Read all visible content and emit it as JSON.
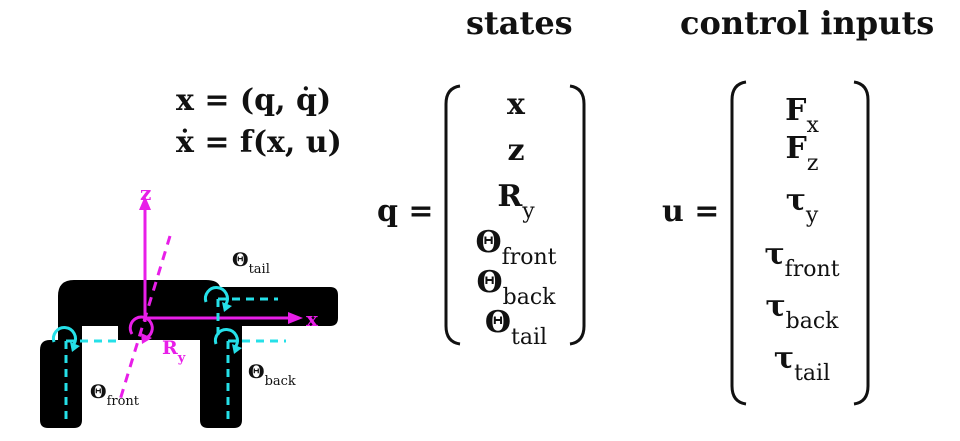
{
  "headers": {
    "states": "states",
    "control_inputs": "control inputs"
  },
  "equations": {
    "line1": "x = (q, q̇)",
    "line2": "ẋ = f(x,  u)"
  },
  "states": {
    "lhs": "q =",
    "rows": [
      {
        "main": "x",
        "sub": ""
      },
      {
        "main": "z",
        "sub": ""
      },
      {
        "main": "R",
        "sub": "y"
      },
      {
        "main": "Θ",
        "sub": "front"
      },
      {
        "main": "Θ",
        "sub": "back"
      },
      {
        "main": "Θ",
        "sub": "tail"
      }
    ]
  },
  "controls": {
    "lhs": "u =",
    "rows": [
      {
        "main": "F",
        "sub": "x"
      },
      {
        "main": "F",
        "sub": "z"
      },
      {
        "main": "τ",
        "sub": "y"
      },
      {
        "main": "τ",
        "sub": "front"
      },
      {
        "main": "τ",
        "sub": "back"
      },
      {
        "main": "τ",
        "sub": "tail"
      }
    ]
  },
  "diagram": {
    "axis_x": "x",
    "axis_z": "z",
    "theta": "Θ",
    "ry_main": "R",
    "ry_sub": "y",
    "sub_tail": "tail",
    "sub_front": "front",
    "sub_back": "back",
    "colors": {
      "axis": "#e81ee8",
      "joint": "#25e0e8",
      "body": "#000000"
    }
  }
}
